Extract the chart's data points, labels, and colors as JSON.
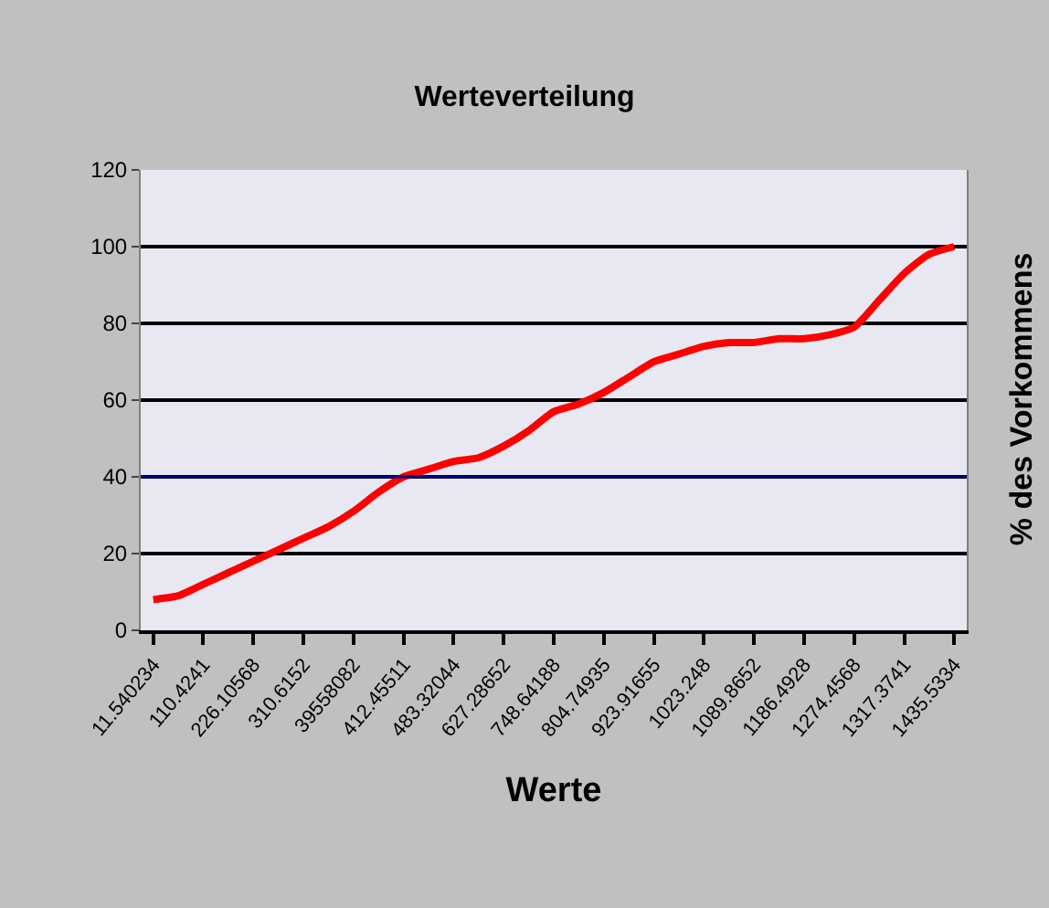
{
  "chart_data": {
    "type": "line",
    "title": "Werteverteilung",
    "xlabel": "Werte",
    "ylabel": "% des Vorkommens",
    "categories": [
      "11.540234",
      null,
      "110.4241",
      null,
      "226.10568",
      null,
      "310.6152",
      null,
      "39558082",
      null,
      "412.45511",
      null,
      "483.32044",
      null,
      "627.28652",
      null,
      "748.64188",
      null,
      "804.74935",
      null,
      "923.91655",
      null,
      "1023.248",
      null,
      "1089.8652",
      null,
      "1186.4928",
      null,
      "1274.4568",
      null,
      "1317.3741",
      null,
      "1435.5334"
    ],
    "series": [
      {
        "color": "#ff0000",
        "values": [
          8,
          9,
          12,
          15,
          18,
          21,
          24,
          27,
          31,
          36,
          40,
          42,
          44,
          45,
          48,
          52,
          57,
          59,
          62,
          66,
          70,
          72,
          74,
          75,
          75,
          76,
          76,
          77,
          79,
          86,
          93,
          98,
          100
        ]
      }
    ],
    "ylim": [
      0,
      120
    ],
    "yticks": [
      0,
      20,
      40,
      60,
      80,
      100,
      120
    ],
    "grid": "y",
    "ref_lines": [
      {
        "axis": "y",
        "value": 40,
        "label": null,
        "color": "#000080"
      }
    ],
    "marker": "none",
    "line_style": "solid"
  }
}
